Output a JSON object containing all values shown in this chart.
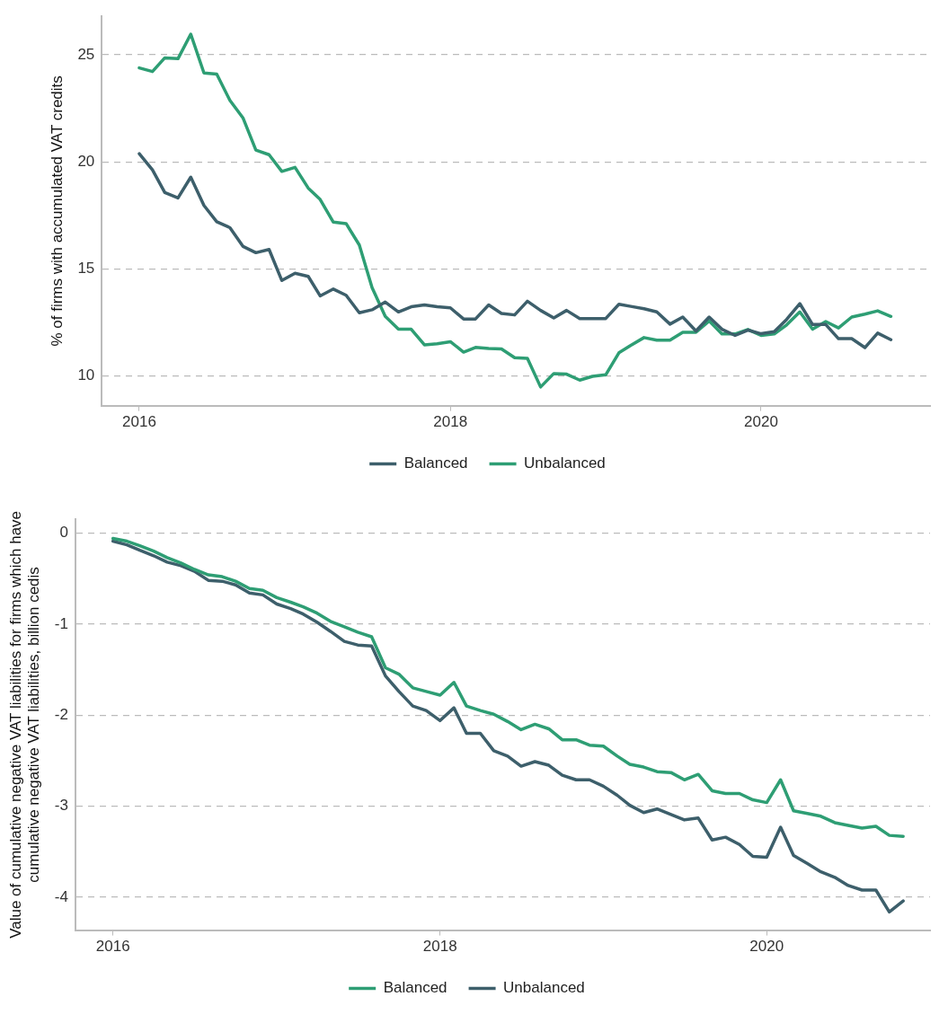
{
  "chart_data": [
    {
      "type": "line",
      "ylabel": "% of firms with accumulated VAT credits",
      "x": [
        "2016-01",
        "2016-02",
        "2016-03",
        "2016-04",
        "2016-05",
        "2016-06",
        "2016-07",
        "2016-08",
        "2016-09",
        "2016-10",
        "2016-11",
        "2016-12",
        "2017-01",
        "2017-02",
        "2017-03",
        "2017-04",
        "2017-05",
        "2017-06",
        "2017-07",
        "2017-08",
        "2017-09",
        "2017-10",
        "2017-11",
        "2017-12",
        "2018-01",
        "2018-02",
        "2018-03",
        "2018-04",
        "2018-05",
        "2018-06",
        "2018-07",
        "2018-08",
        "2018-09",
        "2018-10",
        "2018-11",
        "2018-12",
        "2019-01",
        "2019-02",
        "2019-03",
        "2019-04",
        "2019-05",
        "2019-06",
        "2019-07",
        "2019-08",
        "2019-09",
        "2019-10",
        "2019-11",
        "2019-12",
        "2020-01",
        "2020-02",
        "2020-03",
        "2020-04",
        "2020-05",
        "2020-06",
        "2020-07",
        "2020-08",
        "2020-09",
        "2020-10",
        "2020-11"
      ],
      "series": [
        {
          "name": "Balanced",
          "color": "#3d5f6b",
          "values": [
            20.38,
            19.62,
            18.56,
            18.31,
            19.28,
            17.96,
            17.2,
            16.92,
            16.04,
            15.75,
            15.9,
            14.45,
            14.79,
            14.64,
            13.73,
            14.05,
            13.76,
            12.94,
            13.08,
            13.44,
            12.98,
            13.22,
            13.31,
            13.22,
            13.17,
            12.65,
            12.65,
            13.31,
            12.91,
            12.84,
            13.48,
            13.05,
            12.7,
            13.05,
            12.67,
            12.67,
            12.67,
            13.34,
            13.24,
            13.13,
            12.98,
            12.41,
            12.74,
            12.09,
            12.74,
            12.17,
            11.88,
            12.13,
            11.96,
            12.06,
            12.63,
            13.37,
            12.39,
            12.39,
            11.73,
            11.73,
            11.31,
            11.99,
            11.68
          ]
        },
        {
          "name": "Unbalanced",
          "color": "#2e9e74",
          "values": [
            24.39,
            24.22,
            24.86,
            24.82,
            25.97,
            24.15,
            24.1,
            22.87,
            22.04,
            20.55,
            20.33,
            19.55,
            19.74,
            18.77,
            18.24,
            17.18,
            17.11,
            16.11,
            14.12,
            12.77,
            12.17,
            12.17,
            11.44,
            11.49,
            11.59,
            11.1,
            11.32,
            11.27,
            11.25,
            10.84,
            10.81,
            9.47,
            10.1,
            10.07,
            9.79,
            9.97,
            10.04,
            11.07,
            11.42,
            11.78,
            11.66,
            11.66,
            12.03,
            12.03,
            12.56,
            11.95,
            11.95,
            12.16,
            11.88,
            11.95,
            12.37,
            12.98,
            12.17,
            12.53,
            12.23,
            12.74,
            12.88,
            13.03,
            12.77
          ]
        }
      ],
      "xlim": [
        "2015-10-05",
        "2021-02-01"
      ],
      "xticks": [
        "2016",
        "2018",
        "2020"
      ],
      "ylim": [
        8.6,
        26.8
      ],
      "yticks": [
        10,
        15,
        20,
        25
      ],
      "grid": "y",
      "legend": "bottom",
      "line_style": "solid",
      "marker": "none"
    },
    {
      "type": "line",
      "ylabel": "Value of cumulative negative VAT liabilities for firms which have cumulative negative VAT liabilities, billion cedis",
      "x": [
        "2016-01",
        "2016-02",
        "2016-03",
        "2016-04",
        "2016-05",
        "2016-06",
        "2016-07",
        "2016-08",
        "2016-09",
        "2016-10",
        "2016-11",
        "2016-12",
        "2017-01",
        "2017-02",
        "2017-03",
        "2017-04",
        "2017-05",
        "2017-06",
        "2017-07",
        "2017-08",
        "2017-09",
        "2017-10",
        "2017-11",
        "2017-12",
        "2018-01",
        "2018-02",
        "2018-03",
        "2018-04",
        "2018-05",
        "2018-06",
        "2018-07",
        "2018-08",
        "2018-09",
        "2018-10",
        "2018-11",
        "2018-12",
        "2019-01",
        "2019-02",
        "2019-03",
        "2019-04",
        "2019-05",
        "2019-06",
        "2019-07",
        "2019-08",
        "2019-09",
        "2019-10",
        "2019-11",
        "2019-12",
        "2020-01",
        "2020-02",
        "2020-03",
        "2020-04",
        "2020-05",
        "2020-06",
        "2020-07",
        "2020-08",
        "2020-09",
        "2020-10",
        "2020-11"
      ],
      "series": [
        {
          "name": "Balanced",
          "color": "#2e9e74",
          "values": [
            -0.06,
            -0.09,
            -0.14,
            -0.2,
            -0.27,
            -0.33,
            -0.4,
            -0.46,
            -0.48,
            -0.53,
            -0.61,
            -0.63,
            -0.71,
            -0.76,
            -0.81,
            -0.88,
            -0.97,
            -1.03,
            -1.09,
            -1.14,
            -1.48,
            -1.55,
            -1.7,
            -1.74,
            -1.78,
            -1.64,
            -1.9,
            -1.95,
            -1.99,
            -2.07,
            -2.16,
            -2.1,
            -2.15,
            -2.27,
            -2.27,
            -2.33,
            -2.34,
            -2.45,
            -2.54,
            -2.57,
            -2.62,
            -2.63,
            -2.71,
            -2.65,
            -2.83,
            -2.86,
            -2.86,
            -2.93,
            -2.96,
            -2.71,
            -3.05,
            -3.08,
            -3.11,
            -3.18,
            -3.21,
            -3.24,
            -3.22,
            -3.32,
            -3.33
          ]
        },
        {
          "name": "Unbalanced",
          "color": "#3d5f6b",
          "values": [
            -0.09,
            -0.13,
            -0.19,
            -0.25,
            -0.32,
            -0.36,
            -0.42,
            -0.52,
            -0.53,
            -0.57,
            -0.66,
            -0.68,
            -0.78,
            -0.83,
            -0.89,
            -0.98,
            -1.08,
            -1.19,
            -1.23,
            -1.24,
            -1.57,
            -1.74,
            -1.9,
            -1.95,
            -2.06,
            -1.92,
            -2.2,
            -2.2,
            -2.39,
            -2.45,
            -2.56,
            -2.51,
            -2.55,
            -2.66,
            -2.71,
            -2.71,
            -2.78,
            -2.88,
            -2.99,
            -3.07,
            -3.03,
            -3.09,
            -3.15,
            -3.13,
            -3.37,
            -3.34,
            -3.42,
            -3.55,
            -3.56,
            -3.23,
            -3.54,
            -3.63,
            -3.72,
            -3.78,
            -3.87,
            -3.92,
            -3.92,
            -4.16,
            -4.04
          ]
        }
      ],
      "xlim": [
        "2015-10-09",
        "2020-12-31"
      ],
      "xticks": [
        "2016",
        "2018",
        "2020"
      ],
      "ylim": [
        -4.36,
        0.15
      ],
      "yticks": [
        -4,
        -3,
        -2,
        -1,
        0
      ],
      "grid": "y",
      "legend": "bottom",
      "line_style": "solid",
      "marker": "none"
    }
  ]
}
